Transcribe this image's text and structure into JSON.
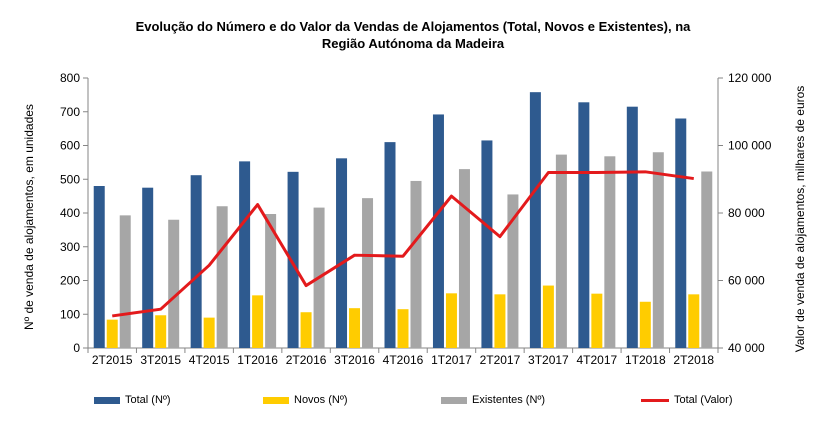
{
  "chart_data": {
    "type": "bar",
    "title_lines": [
      "Evolução  do Número e do Valor da Vendas de Alojamentos (Total, Novos  e Existentes),  na",
      "Região Autónoma  da Madeira"
    ],
    "categories": [
      "2T2015",
      "3T2015",
      "4T2015",
      "1T2016",
      "2T2016",
      "3T2016",
      "4T2016",
      "1T2017",
      "2T2017",
      "3T2017",
      "4T2017",
      "1T2018",
      "2T2018"
    ],
    "series": [
      {
        "name": "Total (Nº)",
        "type": "bar",
        "axis": "left",
        "color": "#2E5A8F",
        "values": [
          480,
          475,
          512,
          553,
          522,
          562,
          610,
          692,
          615,
          758,
          728,
          715,
          680
        ]
      },
      {
        "name": "Novos (Nº)",
        "type": "bar",
        "axis": "left",
        "color": "#FFCC00",
        "values": [
          84,
          97,
          90,
          156,
          106,
          118,
          115,
          162,
          159,
          185,
          161,
          137,
          159
        ]
      },
      {
        "name": "Existentes (Nº)",
        "type": "bar",
        "axis": "left",
        "color": "#A6A6A6",
        "values": [
          393,
          380,
          420,
          397,
          416,
          444,
          495,
          530,
          455,
          573,
          568,
          580,
          523
        ]
      },
      {
        "name": "Total (Valor)",
        "type": "line",
        "axis": "right",
        "color": "#E31A1C",
        "values": [
          49500,
          51500,
          64500,
          82500,
          58500,
          67500,
          67200,
          85000,
          73000,
          92000,
          92000,
          92200,
          90200
        ]
      }
    ],
    "ylabel": "Nº de venda de alojamentos, em unidades",
    "y2label": "Valor de venda de alojamentos, milhares de euros",
    "ylim": [
      0,
      800
    ],
    "yticks": [
      0,
      100,
      200,
      300,
      400,
      500,
      600,
      700,
      800
    ],
    "ytick_labels": [
      "0",
      "100",
      "200",
      "300",
      "400",
      "500",
      "600",
      "700",
      "800"
    ],
    "y2lim": [
      40000,
      120000
    ],
    "y2ticks": [
      40000,
      60000,
      80000,
      100000,
      120000
    ],
    "y2tick_labels": [
      "40 000",
      "60 000",
      "80 000",
      "100 000",
      "120 000"
    ],
    "grid": false,
    "legend_position": "bottom"
  }
}
